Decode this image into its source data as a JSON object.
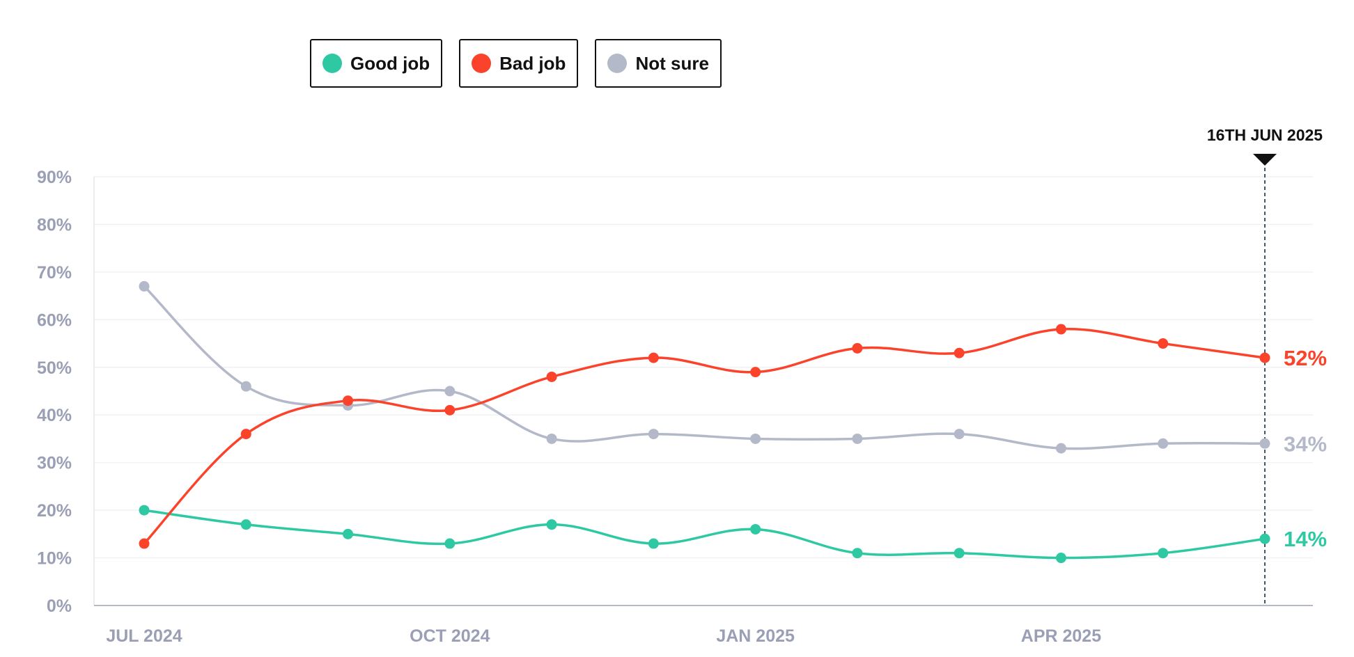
{
  "legend": {
    "items": [
      {
        "label": "Good job",
        "color": "#2ec9a3"
      },
      {
        "label": "Bad job",
        "color": "#fb432c"
      },
      {
        "label": "Not sure",
        "color": "#b4b9c9"
      }
    ]
  },
  "chart_data": {
    "type": "line",
    "x_ticks": [
      "JUL 2024",
      "OCT 2024",
      "JAN 2025",
      "APR 2025"
    ],
    "y_ticks": [
      "0%",
      "10%",
      "20%",
      "30%",
      "40%",
      "50%",
      "60%",
      "70%",
      "80%",
      "90%"
    ],
    "ylim": [
      0,
      90
    ],
    "grid": true,
    "marker_label": "16TH JUN 2025",
    "series": [
      {
        "name": "Good job",
        "color": "#2ec9a3",
        "values": [
          20,
          17,
          15,
          13,
          17,
          13,
          16,
          11,
          11,
          10,
          11,
          14
        ],
        "end_label": "14%"
      },
      {
        "name": "Bad job",
        "color": "#fb432c",
        "values": [
          13,
          36,
          43,
          41,
          48,
          52,
          49,
          54,
          53,
          58,
          55,
          52
        ],
        "end_label": "52%"
      },
      {
        "name": "Not sure",
        "color": "#b4b9c9",
        "values": [
          67,
          46,
          42,
          45,
          35,
          36,
          35,
          35,
          36,
          33,
          34,
          34
        ],
        "end_label": "34%"
      }
    ]
  }
}
